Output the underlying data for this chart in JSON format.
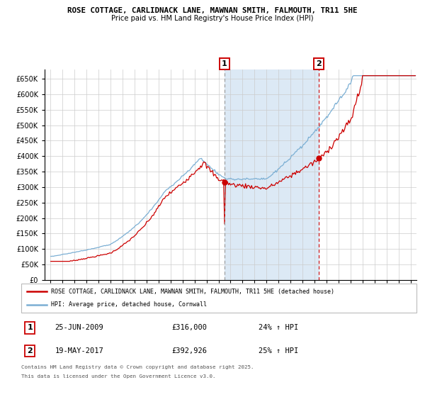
{
  "title1": "ROSE COTTAGE, CARLIDNACK LANE, MAWNAN SMITH, FALMOUTH, TR11 5HE",
  "title2": "Price paid vs. HM Land Registry's House Price Index (HPI)",
  "legend_label1": "ROSE COTTAGE, CARLIDNACK LANE, MAWNAN SMITH, FALMOUTH, TR11 5HE (detached house)",
  "legend_label2": "HPI: Average price, detached house, Cornwall",
  "color_red": "#CC0000",
  "color_blue": "#7BAFD4",
  "color_bg": "#DCE9F5",
  "annotation1_date": "25-JUN-2009",
  "annotation1_price": "£316,000",
  "annotation1_hpi": "24% ↑ HPI",
  "annotation2_date": "19-MAY-2017",
  "annotation2_price": "£392,926",
  "annotation2_hpi": "25% ↑ HPI",
  "vline1_x": 2009.49,
  "vline2_x": 2017.38,
  "ylim": [
    0,
    680000
  ],
  "xlim_start": 1994.5,
  "xlim_end": 2025.5,
  "yticks": [
    0,
    50000,
    100000,
    150000,
    200000,
    250000,
    300000,
    350000,
    400000,
    450000,
    500000,
    550000,
    600000,
    650000
  ],
  "footer": "Contains HM Land Registry data © Crown copyright and database right 2025.\nThis data is licensed under the Open Government Licence v3.0.",
  "bg_rect_x1": 2009.49,
  "bg_rect_x2": 2017.38,
  "point1_y": 316000,
  "point2_y": 392926
}
